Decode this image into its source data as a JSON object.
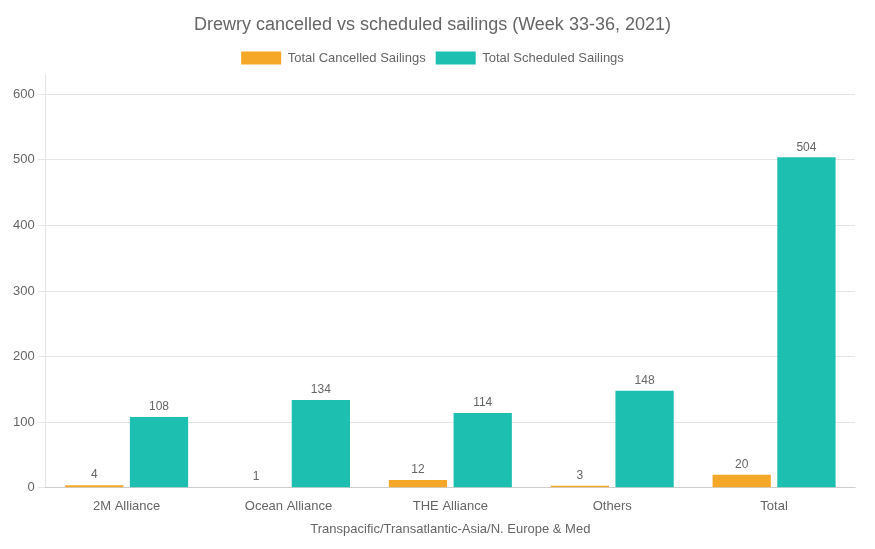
{
  "chart_data": {
    "type": "bar",
    "title": "Drewry cancelled vs scheduled sailings (Week 33-36, 2021)",
    "xlabel": "Transpacific/Transatlantic-Asia/N. Europe & Med",
    "categories": [
      "2M Alliance",
      "Ocean Alliance",
      "THE Alliance",
      "Others",
      "Total"
    ],
    "series": [
      {
        "name": "Total Cancelled Sailings",
        "color": "#F5A827",
        "values": [
          4,
          1,
          12,
          3,
          20
        ]
      },
      {
        "name": "Total Scheduled Sailings",
        "color": "#1DBFB0",
        "values": [
          108,
          134,
          114,
          148,
          504
        ]
      }
    ],
    "ylim": [
      0,
      630
    ],
    "yticks": [
      0,
      100,
      200,
      300,
      400,
      500,
      600
    ],
    "grid": true,
    "legend": "top",
    "data_labels": true
  }
}
